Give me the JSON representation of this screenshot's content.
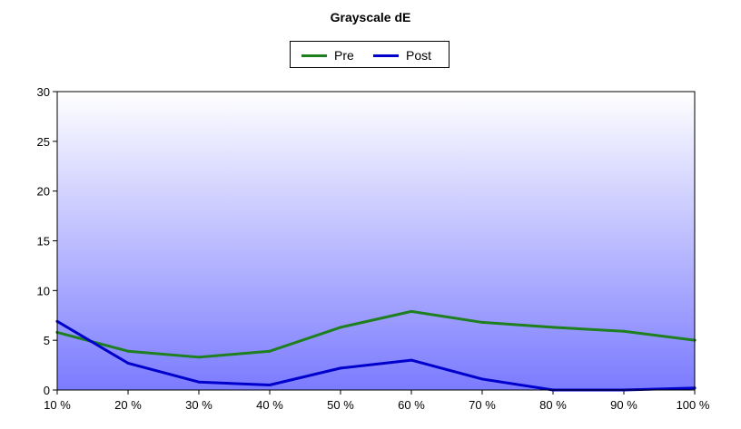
{
  "chart_data": {
    "type": "line",
    "title": "Grayscale dE",
    "xlabel": "",
    "ylabel": "",
    "categories": [
      "10 %",
      "20 %",
      "30 %",
      "40 %",
      "50 %",
      "60 %",
      "70 %",
      "80 %",
      "90 %",
      "100 %"
    ],
    "ylim": [
      0,
      30
    ],
    "yticks": [
      0,
      5,
      10,
      15,
      20,
      25,
      30
    ],
    "grid": false,
    "legend_position": "top-center",
    "series": [
      {
        "name": "Pre",
        "color": "#1e7f1e",
        "values": [
          5.8,
          3.9,
          3.3,
          3.9,
          6.3,
          7.9,
          6.8,
          6.3,
          5.9,
          5.0
        ]
      },
      {
        "name": "Post",
        "color": "#0000cc",
        "values": [
          6.9,
          2.7,
          0.8,
          0.5,
          2.2,
          3.0,
          1.1,
          0.0,
          0.0,
          0.2
        ]
      }
    ],
    "plot_background": {
      "top_color": "#ffffff",
      "bottom_color": "#7b7bff"
    }
  }
}
